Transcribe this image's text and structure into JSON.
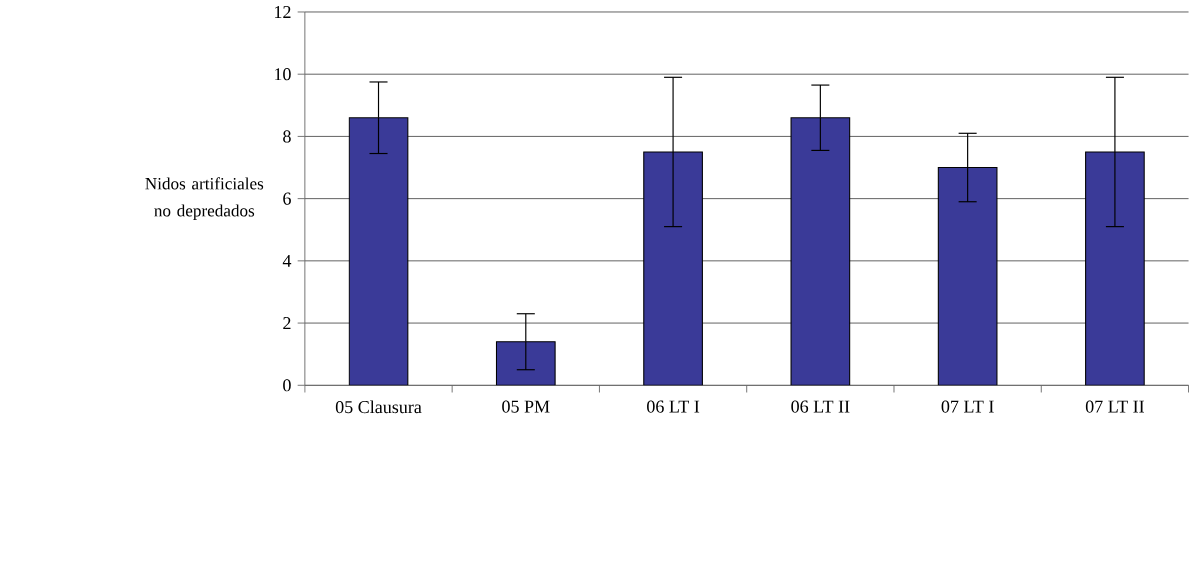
{
  "chart_data": {
    "type": "bar",
    "ylabel": "Nidos artificiales no depredados",
    "categories": [
      "05 Clausura",
      "05 PM",
      "06 LT I",
      "06 LT II",
      "07 LT I",
      "07 LT II"
    ],
    "values": [
      8.6,
      1.4,
      7.5,
      8.6,
      7.0,
      7.5
    ],
    "errors": [
      1.15,
      0.9,
      2.4,
      1.05,
      1.1,
      2.4
    ],
    "color": "#3a3a98",
    "ylim": [
      0,
      12
    ],
    "yticks": [
      0,
      2,
      4,
      6,
      8,
      10,
      12
    ],
    "grid": "y"
  }
}
